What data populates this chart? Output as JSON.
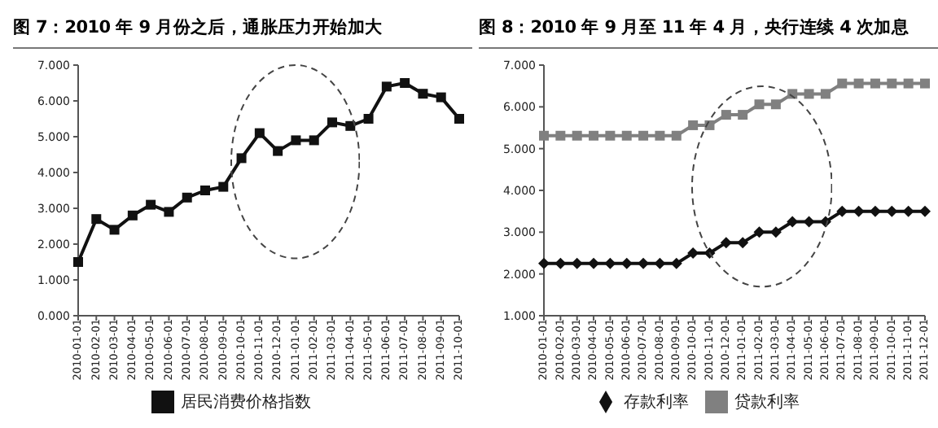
{
  "chart_data": [
    {
      "type": "line",
      "title": "图 7：2010 年 9 月份之后，通胀压力开始加大",
      "categories": [
        "2010-01-01",
        "2010-02-01",
        "2010-03-01",
        "2010-04-01",
        "2010-05-01",
        "2010-06-01",
        "2010-07-01",
        "2010-08-01",
        "2010-09-01",
        "2010-10-01",
        "2010-11-01",
        "2010-12-01",
        "2011-01-01",
        "2011-02-01",
        "2011-03-01",
        "2011-04-01",
        "2011-05-01",
        "2011-06-01",
        "2011-07-01",
        "2011-08-01",
        "2011-09-01",
        "2011-10-01"
      ],
      "series": [
        {
          "name": "居民消费价格指数",
          "color": "#111111",
          "values": [
            1.5,
            2.7,
            2.4,
            2.8,
            3.1,
            2.9,
            3.3,
            3.5,
            3.6,
            4.4,
            5.1,
            4.6,
            4.9,
            4.9,
            5.4,
            5.3,
            5.5,
            6.4,
            6.5,
            6.2,
            6.1,
            5.5
          ]
        }
      ],
      "ylim": [
        0,
        7
      ],
      "yticks": [
        {
          "value": 0,
          "label": "0.000"
        },
        {
          "value": 1,
          "label": "1.000"
        },
        {
          "value": 2,
          "label": "2.000"
        },
        {
          "value": 3,
          "label": "3.000"
        },
        {
          "value": 4,
          "label": "4.000"
        },
        {
          "value": 5,
          "label": "5.000"
        },
        {
          "value": 6,
          "label": "6.000"
        },
        {
          "value": 7,
          "label": "7.000"
        }
      ],
      "marker": "square",
      "line_style": "solid",
      "legend": "bottom"
    },
    {
      "type": "line",
      "title": "图 8：2010 年 9 月至 11 年 4 月，央行连续 4 次加息",
      "categories": [
        "2010-01-01",
        "2010-02-01",
        "2010-03-01",
        "2010-04-01",
        "2010-05-01",
        "2010-06-01",
        "2010-07-01",
        "2010-08-01",
        "2010-09-01",
        "2010-10-01",
        "2010-11-01",
        "2010-12-01",
        "2011-01-01",
        "2011-02-01",
        "2011-03-01",
        "2011-04-01",
        "2011-05-01",
        "2011-06-01",
        "2011-07-01",
        "2011-08-01",
        "2011-09-01",
        "2011-10-01",
        "2011-11-01",
        "2011-12-01"
      ],
      "series": [
        {
          "name": "存款利率",
          "color": "#111111",
          "marker": "diamond",
          "values": [
            2.25,
            2.25,
            2.25,
            2.25,
            2.25,
            2.25,
            2.25,
            2.25,
            2.25,
            2.5,
            2.5,
            2.75,
            2.75,
            3.0,
            3.0,
            3.25,
            3.25,
            3.25,
            3.5,
            3.5,
            3.5,
            3.5,
            3.5,
            3.5
          ]
        },
        {
          "name": "贷款利率",
          "color": "#808080",
          "marker": "square",
          "values": [
            5.31,
            5.31,
            5.31,
            5.31,
            5.31,
            5.31,
            5.31,
            5.31,
            5.31,
            5.56,
            5.56,
            5.81,
            5.81,
            6.06,
            6.06,
            6.31,
            6.31,
            6.31,
            6.56,
            6.56,
            6.56,
            6.56,
            6.56,
            6.56
          ]
        }
      ],
      "ylim": [
        1,
        7
      ],
      "yticks": [
        {
          "value": 1,
          "label": "1.000"
        },
        {
          "value": 2,
          "label": "2.000"
        },
        {
          "value": 3,
          "label": "3.000"
        },
        {
          "value": 4,
          "label": "4.000"
        },
        {
          "value": 5,
          "label": "5.000"
        },
        {
          "value": 6,
          "label": "6.000"
        },
        {
          "value": 7,
          "label": "7.000"
        }
      ],
      "line_style": "solid",
      "legend": "bottom"
    }
  ]
}
